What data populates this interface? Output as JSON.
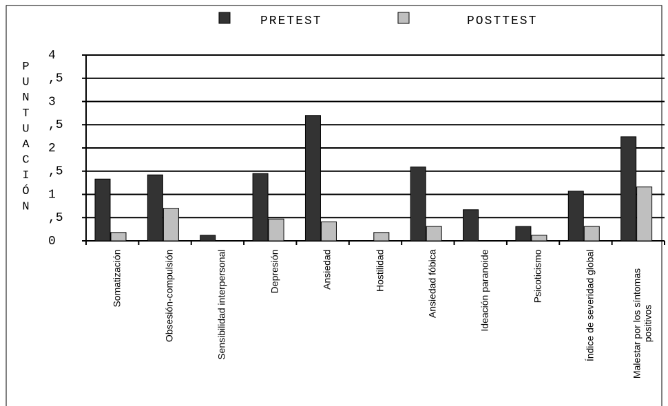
{
  "chart_data": {
    "type": "bar",
    "ylabel": "PUNTUACIÓN",
    "categories": [
      "Somatización",
      "Obsesión-compulsión",
      "Sensibilidad interpersonal",
      "Depresión",
      "Ansiedad",
      "Hostilidad",
      "Ansiedad fóbica",
      "Ideación paranoide",
      "Psicoticismo",
      "Índice de severidad global",
      "Malestar por los síntomas positivos"
    ],
    "series": [
      {
        "name": "PRETEST",
        "color": "#333333",
        "values": [
          1.33,
          1.42,
          0.12,
          1.45,
          2.7,
          0,
          1.59,
          0.67,
          0.31,
          1.07,
          2.24
        ]
      },
      {
        "name": "POSTTEST",
        "color": "#bfbfbf",
        "values": [
          0.18,
          0.7,
          0,
          0.47,
          0.41,
          0.18,
          0.31,
          0,
          0.12,
          0.31,
          1.16
        ]
      }
    ],
    "ylim": [
      0,
      4
    ],
    "yticks": [
      0,
      {
        "value": 0.5,
        "label": ",5"
      },
      1,
      {
        "value": 1.5,
        "label": ",5"
      },
      2,
      {
        "value": 2.5,
        "label": ",5"
      },
      3,
      {
        "value": 3.5,
        "label": ",5"
      },
      4
    ],
    "grid": true,
    "legend": "top"
  }
}
